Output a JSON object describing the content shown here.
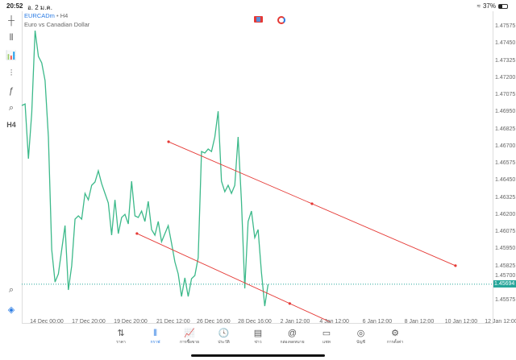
{
  "status_bar": {
    "time": "20:52",
    "date": "อ. 2 ม.ค.",
    "battery": "37%",
    "battery_level": 0.37
  },
  "symbol": {
    "name": "EURCADm",
    "timeframe": "H4",
    "description": "Euro vs Canadian Dollar"
  },
  "toolbar": {
    "items": [
      {
        "icon": "crosshair-icon",
        "glyph": "┼"
      },
      {
        "icon": "candlestick-icon",
        "glyph": "⫴"
      },
      {
        "icon": "indicators-icon",
        "glyph": "📊"
      },
      {
        "icon": "settings-sliders-icon",
        "glyph": "⫶"
      },
      {
        "icon": "function-icon",
        "glyph": "ƒ"
      },
      {
        "icon": "objects-icon",
        "glyph": "⌕"
      },
      {
        "icon": "timeframe-label",
        "glyph": "H4"
      }
    ],
    "bottom": [
      {
        "icon": "chart-search-icon",
        "glyph": "⌕"
      },
      {
        "icon": "one-click-trading-icon",
        "glyph": "◈"
      }
    ]
  },
  "colors": {
    "line": "#3cb98a",
    "trendline": "#e53935",
    "price_tag": "#26a69a",
    "accent": "#2a7be4"
  },
  "chart_data": {
    "type": "line",
    "x_unit": "H4 bar index",
    "values": [
      1.46999,
      1.4701,
      1.4661,
      1.46946,
      1.47546,
      1.47357,
      1.4731,
      1.47181,
      1.46769,
      1.45946,
      1.4571,
      1.45769,
      1.45946,
      1.46122,
      1.45652,
      1.45828,
      1.46169,
      1.46193,
      1.46169,
      1.46357,
      1.4631,
      1.46416,
      1.4644,
      1.46522,
      1.46428,
      1.46357,
      1.46287,
      1.46052,
      1.4631,
      1.46063,
      1.46181,
      1.46204,
      1.46134,
      1.46446,
      1.46193,
      1.46181,
      1.46228,
      1.46152,
      1.46299,
      1.46093,
      1.46052,
      1.46152,
      1.46004,
      1.46063,
      1.46122,
      1.45993,
      1.45857,
      1.45769,
      1.45604,
      1.4574,
      1.45604,
      1.45734,
      1.45757,
      1.45887,
      1.46663,
      1.46652,
      1.46681,
      1.46663,
      1.46769,
      1.46957,
      1.46446,
      1.46369,
      1.46416,
      1.46357,
      1.46416,
      1.46769,
      1.46299,
      1.45663,
      1.46152,
      1.46228,
      1.46034,
      1.46093,
      1.45781,
      1.45534,
      1.45693
    ],
    "ylim": [
      1.45405,
      1.47687
    ],
    "xlim": [
      0,
      141.7
    ],
    "y_ticks": [
      "1.47575",
      "1.47450",
      "1.47325",
      "1.47200",
      "1.47075",
      "1.46950",
      "1.46825",
      "1.46700",
      "1.46575",
      "1.46450",
      "1.46325",
      "1.46200",
      "1.46075",
      "1.45950",
      "1.45825",
      "1.45700",
      "1.45575"
    ],
    "x_ticks": [
      {
        "label": "14 Dec 00:00",
        "x": 7.5
      },
      {
        "label": "17 Dec 20:00",
        "x": 20.1
      },
      {
        "label": "19 Dec 20:00",
        "x": 32.7
      },
      {
        "label": "21 Dec 12:00",
        "x": 45.5
      },
      {
        "label": "26 Dec 16:00",
        "x": 57.6
      },
      {
        "label": "28 Dec 16:00",
        "x": 70
      },
      {
        "label": "2 Jan 12:00",
        "x": 82.1
      },
      {
        "label": "4 Jan 12:00",
        "x": 93.9
      },
      {
        "label": "6 Jan 12:00",
        "x": 106.8
      },
      {
        "label": "8 Jan 12:00",
        "x": 119.4
      },
      {
        "label": "10 Jan 12:00",
        "x": 132
      },
      {
        "label": "12 Jan 12:00",
        "x": 144
      }
    ],
    "current_price": "1.45694",
    "current_price_value": 1.45694,
    "trendlines": [
      {
        "x1": 44.1,
        "y1": 1.46734,
        "x2": 130.3,
        "y2": 1.45829
      },
      {
        "x1": 34.6,
        "y1": 1.46064,
        "x2": 92.7,
        "y2": 1.45417
      }
    ],
    "grid": false
  },
  "nav": {
    "items": [
      {
        "icon": "price-arrows-icon",
        "glyph": "⇅",
        "label": "ราคา"
      },
      {
        "icon": "chart-icon",
        "glyph": "⫴",
        "label": "กราฟ",
        "active": true
      },
      {
        "icon": "trade-icon",
        "glyph": "📈",
        "label": "การซื้อขาย"
      },
      {
        "icon": "history-icon",
        "glyph": "🕓",
        "label": "ประวัติ"
      },
      {
        "icon": "news-icon",
        "glyph": "▤",
        "label": "ข่าว"
      },
      {
        "icon": "mailbox-icon",
        "glyph": "@",
        "label": "กล่องจดหมาย"
      },
      {
        "icon": "chat-icon",
        "glyph": "▭",
        "label": "แชท"
      },
      {
        "icon": "account-icon",
        "glyph": "◎",
        "label": "บัญชี"
      },
      {
        "icon": "settings-icon",
        "glyph": "⚙",
        "label": "การตั้งค่า"
      }
    ]
  }
}
